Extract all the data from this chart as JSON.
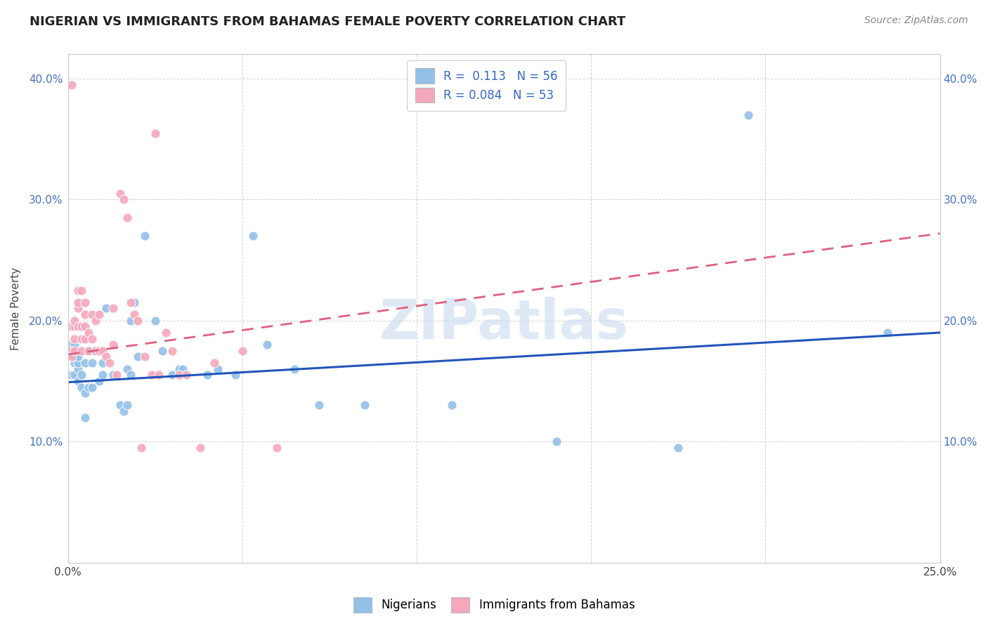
{
  "title": "NIGERIAN VS IMMIGRANTS FROM BAHAMAS FEMALE POVERTY CORRELATION CHART",
  "source": "Source: ZipAtlas.com",
  "xlabel": "",
  "ylabel": "Female Poverty",
  "xlim": [
    0.0,
    0.25
  ],
  "ylim": [
    0.0,
    0.42
  ],
  "xticks": [
    0.0,
    0.05,
    0.1,
    0.15,
    0.2,
    0.25
  ],
  "xticklabels": [
    "0.0%",
    "",
    "",
    "",
    "",
    "25.0%"
  ],
  "yticks": [
    0.0,
    0.1,
    0.2,
    0.3,
    0.4
  ],
  "yticklabels": [
    "",
    "10.0%",
    "20.0%",
    "30.0%",
    "40.0%"
  ],
  "nigerian_color": "#92c0e8",
  "bahamas_color": "#f5a8bc",
  "nigerian_line_color": "#2255bb",
  "bahamas_line_color": "#e06080",
  "watermark_text": "ZIPatlas",
  "nigerian_x": [
    0.001,
    0.001,
    0.001,
    0.002,
    0.002,
    0.002,
    0.002,
    0.002,
    0.003,
    0.003,
    0.003,
    0.003,
    0.004,
    0.004,
    0.004,
    0.005,
    0.005,
    0.005,
    0.006,
    0.006,
    0.007,
    0.007,
    0.008,
    0.009,
    0.009,
    0.01,
    0.01,
    0.011,
    0.013,
    0.015,
    0.016,
    0.017,
    0.017,
    0.018,
    0.018,
    0.019,
    0.02,
    0.022,
    0.025,
    0.027,
    0.03,
    0.032,
    0.033,
    0.04,
    0.043,
    0.048,
    0.053,
    0.057,
    0.065,
    0.072,
    0.085,
    0.11,
    0.14,
    0.175,
    0.195,
    0.235
  ],
  "nigerian_y": [
    0.155,
    0.175,
    0.18,
    0.155,
    0.165,
    0.17,
    0.175,
    0.18,
    0.15,
    0.16,
    0.165,
    0.17,
    0.145,
    0.155,
    0.195,
    0.12,
    0.14,
    0.165,
    0.145,
    0.175,
    0.145,
    0.165,
    0.175,
    0.15,
    0.175,
    0.155,
    0.165,
    0.21,
    0.155,
    0.13,
    0.125,
    0.13,
    0.16,
    0.155,
    0.2,
    0.215,
    0.17,
    0.27,
    0.2,
    0.175,
    0.155,
    0.16,
    0.16,
    0.155,
    0.16,
    0.155,
    0.27,
    0.18,
    0.16,
    0.13,
    0.13,
    0.13,
    0.1,
    0.095,
    0.37,
    0.19
  ],
  "bahamas_x": [
    0.001,
    0.001,
    0.001,
    0.001,
    0.002,
    0.002,
    0.002,
    0.002,
    0.003,
    0.003,
    0.003,
    0.003,
    0.004,
    0.004,
    0.004,
    0.004,
    0.005,
    0.005,
    0.005,
    0.005,
    0.006,
    0.006,
    0.007,
    0.007,
    0.008,
    0.008,
    0.009,
    0.009,
    0.01,
    0.011,
    0.012,
    0.013,
    0.013,
    0.014,
    0.015,
    0.016,
    0.017,
    0.018,
    0.019,
    0.02,
    0.021,
    0.022,
    0.024,
    0.025,
    0.026,
    0.028,
    0.03,
    0.032,
    0.034,
    0.038,
    0.042,
    0.05,
    0.06
  ],
  "bahamas_y": [
    0.395,
    0.195,
    0.175,
    0.17,
    0.175,
    0.185,
    0.195,
    0.2,
    0.21,
    0.195,
    0.215,
    0.225,
    0.175,
    0.185,
    0.195,
    0.225,
    0.185,
    0.195,
    0.205,
    0.215,
    0.175,
    0.19,
    0.185,
    0.205,
    0.175,
    0.2,
    0.175,
    0.205,
    0.175,
    0.17,
    0.165,
    0.18,
    0.21,
    0.155,
    0.305,
    0.3,
    0.285,
    0.215,
    0.205,
    0.2,
    0.095,
    0.17,
    0.155,
    0.355,
    0.155,
    0.19,
    0.175,
    0.155,
    0.155,
    0.095,
    0.165,
    0.175,
    0.095
  ],
  "nigerian_trend": [
    0.149,
    0.19
  ],
  "bahamas_trend_x": [
    0.0,
    0.25
  ],
  "bahamas_trend": [
    0.172,
    0.272
  ]
}
